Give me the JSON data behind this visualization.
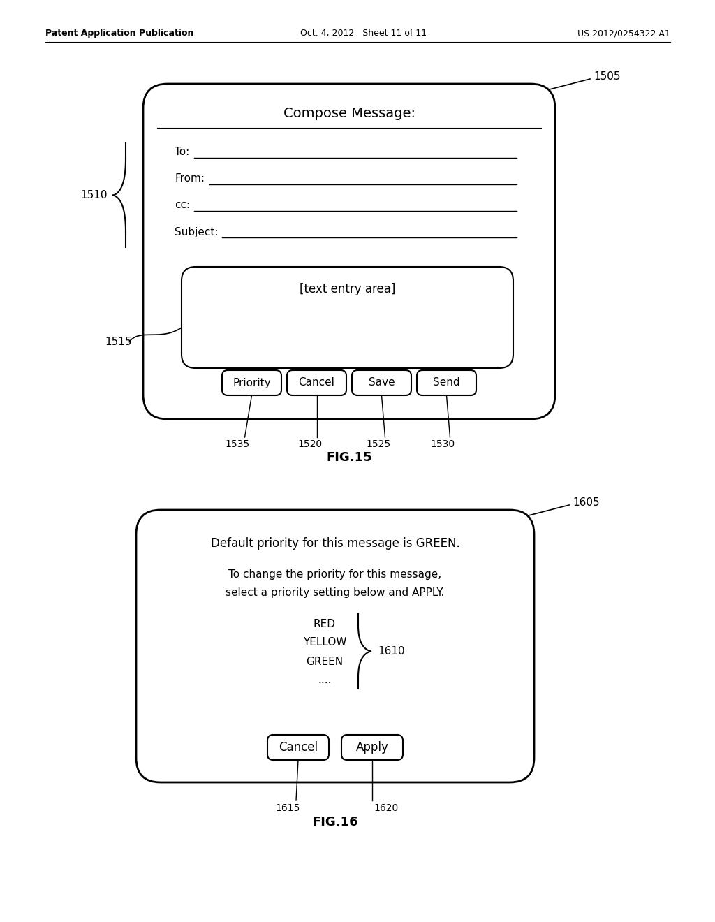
{
  "bg_color": "#ffffff",
  "header_left": "Patent Application Publication",
  "header_center": "Oct. 4, 2012   Sheet 11 of 11",
  "header_right": "US 2012/0254322 A1",
  "fig15": {
    "title": "Compose Message:",
    "fields": [
      "To:",
      "From:",
      "cc:",
      "Subject:"
    ],
    "text_area_label": "[text entry area]",
    "buttons": [
      "Priority",
      "Cancel",
      "Save",
      "Send"
    ],
    "button_labels_bottom": [
      "1535",
      "1520",
      "1525",
      "1530"
    ],
    "label_1505": "1505",
    "label_1510": "1510",
    "label_1515": "1515",
    "fig_label": "FIG.15"
  },
  "fig16": {
    "line1": "Default priority for this message is GREEN.",
    "line2": "To change the priority for this message,",
    "line3": "select a priority setting below and APPLY.",
    "list_items": [
      "RED",
      "YELLOW",
      "GREEN",
      "...."
    ],
    "list_label": "1610",
    "buttons": [
      "Cancel",
      "Apply"
    ],
    "label_1605": "1605",
    "label_1615": "1615",
    "label_1620": "1620",
    "fig_label": "FIG.16"
  }
}
